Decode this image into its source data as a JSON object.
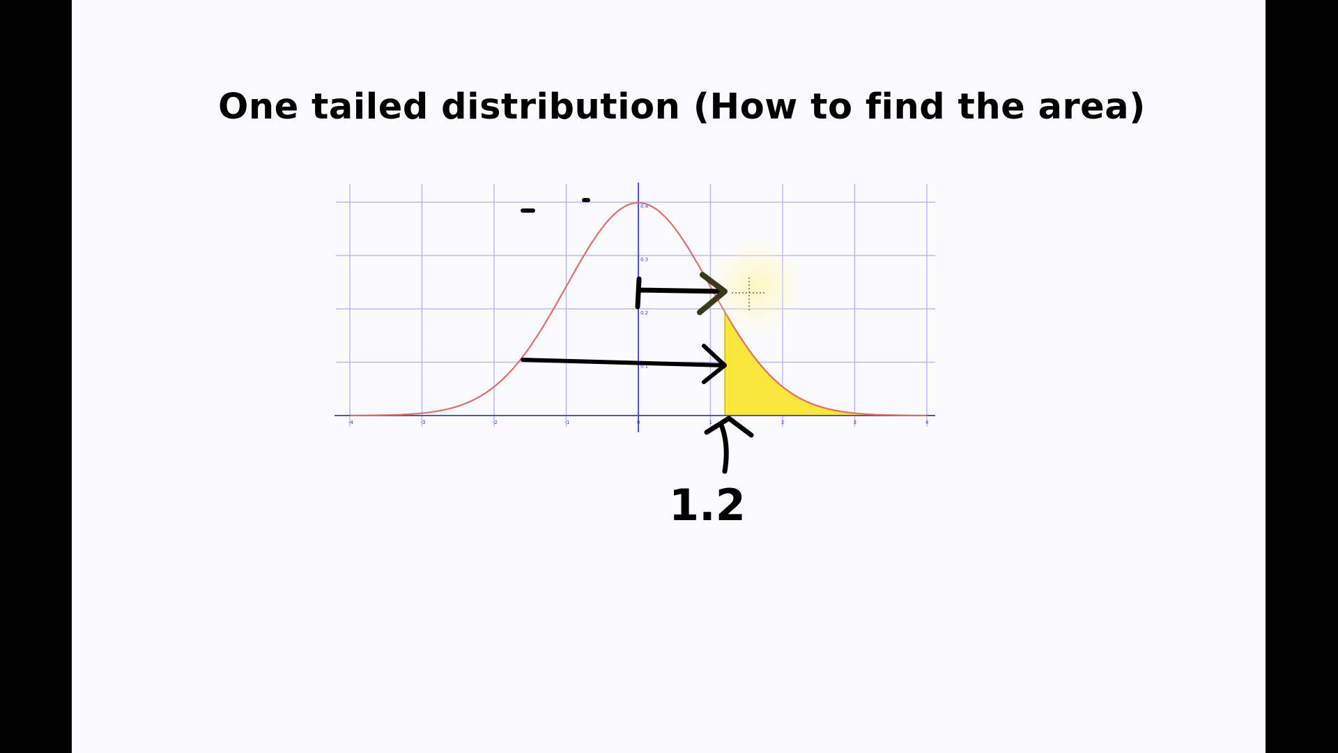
{
  "slide": {
    "title": "One tailed distribution (How to find the area)"
  },
  "annotation": {
    "label": "1.2"
  },
  "chart_data": {
    "type": "area",
    "title": "One tailed distribution (How to find the area)",
    "xlim": [
      -4,
      4
    ],
    "ylim": [
      0,
      0.4
    ],
    "x_ticks": [
      -4,
      -3,
      -2,
      -1,
      0,
      1,
      2,
      3,
      4
    ],
    "y_ticks": [
      0.1,
      0.2,
      0.3,
      0.4
    ],
    "grid": true,
    "curve": "standard normal density",
    "shaded_region_from_x": 1.2,
    "shaded_region_to_x": 4,
    "annotation_x": 1.2,
    "colors": {
      "curve": "#e06c6c",
      "shade": "#f7e63b",
      "grid": "#b9b9f2",
      "axis": "#5050d0",
      "ink": "#000000"
    }
  }
}
